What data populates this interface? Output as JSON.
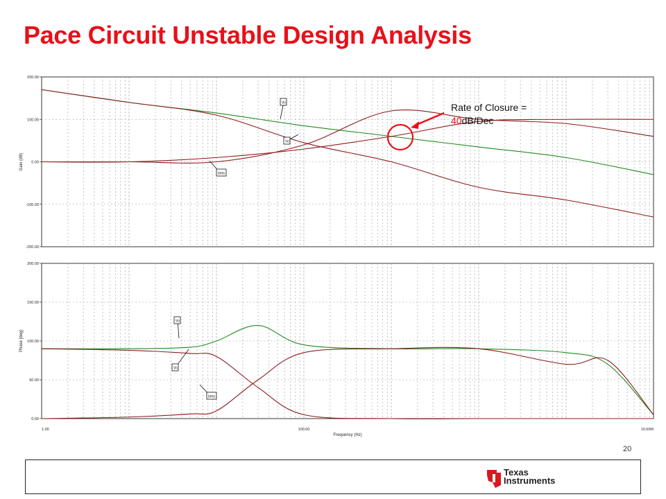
{
  "title": "Pace Circuit Unstable Design Analysis",
  "annotation": {
    "line1": "Rate of Closure =",
    "rate_value": "40",
    "rate_unit": "dB/Dec"
  },
  "page_number": "20",
  "logo": {
    "line1": "Texas",
    "line2": "Instruments"
  },
  "colors": {
    "title": "#e8101a",
    "green_trace": "#1f8a1f",
    "red_trace": "#8b1a1a",
    "highlight": "#e8101a",
    "grid": "#9a9a9a"
  },
  "chart_data": [
    {
      "type": "line",
      "name": "gain",
      "ylabel": "Gain (dB)",
      "xscale": "log",
      "xlim": [
        1,
        10000000
      ],
      "ylim": [
        -200,
        200
      ],
      "y_ticks": [
        "200.00",
        "100.00",
        "0.00",
        "-100.00",
        "-200.00"
      ],
      "grid": true,
      "series": [
        {
          "name": "Vo",
          "color": "#1f8a1f",
          "x": [
            1,
            10,
            100,
            1000,
            10000,
            100000,
            1000000,
            10000000
          ],
          "y": [
            170,
            140,
            115,
            85,
            60,
            35,
            10,
            -30
          ]
        },
        {
          "name": "Vo",
          "color": "#8b1a1a",
          "x": [
            1,
            10,
            100,
            1000,
            10000,
            100000,
            1000000,
            10000000
          ],
          "y": [
            0,
            0,
            0,
            40,
            120,
            100,
            90,
            60
          ]
        },
        {
          "name": "beta",
          "color": "#8b1a1a",
          "x": [
            1,
            10,
            100,
            1000,
            10000,
            100000,
            1000000,
            10000000
          ],
          "y": [
            0,
            0,
            10,
            30,
            60,
            95,
            100,
            100
          ]
        },
        {
          "name": "loop",
          "color": "#8b1a1a",
          "x": [
            1,
            10,
            100,
            1000,
            10000,
            100000,
            1000000,
            10000000
          ],
          "y": [
            170,
            140,
            110,
            45,
            0,
            -60,
            -90,
            -130
          ]
        }
      ],
      "labels": [
        "Vo",
        "Vo",
        "beta"
      ]
    },
    {
      "type": "line",
      "name": "phase",
      "xlabel": "Frequency (Hz)",
      "ylabel": "Phase [deg]",
      "xscale": "log",
      "xlim": [
        1,
        10000000
      ],
      "ylim": [
        0,
        200
      ],
      "y_ticks": [
        "200.00",
        "150.00",
        "100.00",
        "50.00",
        "0.00"
      ],
      "x_ticks": [
        "1.00",
        "100.00",
        "10.00M"
      ],
      "grid": true,
      "series": [
        {
          "name": "Vo",
          "color": "#1f8a1f",
          "x": [
            1,
            10,
            50,
            100,
            300,
            1000,
            10000,
            100000,
            1000000,
            3000000,
            10000000
          ],
          "y": [
            90,
            90,
            92,
            100,
            120,
            95,
            90,
            90,
            85,
            70,
            5
          ]
        },
        {
          "name": "Vo",
          "color": "#8b1a1a",
          "x": [
            1,
            10,
            50,
            100,
            300,
            1000,
            10000,
            100000,
            1000000,
            10000000
          ],
          "y": [
            90,
            88,
            84,
            80,
            40,
            5,
            0,
            0,
            0,
            0
          ]
        },
        {
          "name": "beta",
          "color": "#8b1a1a",
          "x": [
            1,
            10,
            50,
            100,
            300,
            1000,
            10000,
            100000,
            1000000,
            3000000,
            10000000
          ],
          "y": [
            0,
            2,
            6,
            10,
            50,
            85,
            90,
            90,
            70,
            75,
            5
          ]
        }
      ],
      "labels": [
        "Vo",
        "Vo",
        "beta"
      ]
    }
  ]
}
